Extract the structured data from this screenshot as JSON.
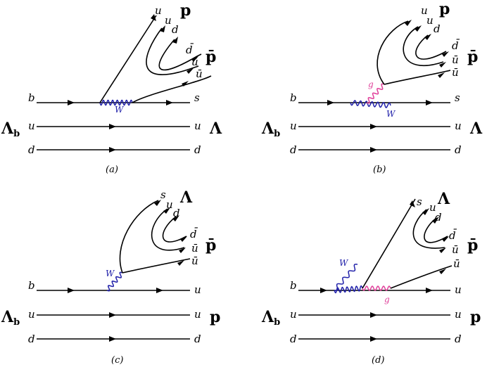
{
  "colors": {
    "w_boson": "#2222aa",
    "gluon": "#e0409a",
    "fermion": "#000000"
  },
  "diagrams": {
    "a": {
      "caption": "(a)",
      "initial_hadron": "Λ",
      "initial_hadron_sub": "b",
      "final_top": "p",
      "final_mid": "p̄",
      "final_bottom": "Λ",
      "quarks_left": [
        "b",
        "u",
        "d"
      ],
      "quarks_right": [
        "s",
        "u",
        "d"
      ],
      "quarks_top": [
        "u",
        "u",
        "d"
      ],
      "quarks_mid": [
        "d̄",
        "ū",
        "ū"
      ],
      "boson": "W"
    },
    "b": {
      "caption": "(b)",
      "initial_hadron": "Λ",
      "initial_hadron_sub": "b",
      "final_top": "p",
      "final_mid": "p̄",
      "final_bottom": "Λ",
      "quarks_left": [
        "b",
        "u",
        "d"
      ],
      "quarks_right": [
        "s",
        "u",
        "d"
      ],
      "quarks_top": [
        "u",
        "u",
        "d"
      ],
      "quarks_mid": [
        "d̄",
        "ū",
        "ū"
      ],
      "boson_w": "W",
      "boson_g": "g"
    },
    "c": {
      "caption": "(c)",
      "initial_hadron": "Λ",
      "initial_hadron_sub": "b",
      "final_top": "Λ",
      "final_mid": "p̄",
      "final_bottom": "p",
      "quarks_left": [
        "b",
        "u",
        "d"
      ],
      "quarks_right": [
        "u",
        "u",
        "d"
      ],
      "quarks_top": [
        "s",
        "u",
        "d"
      ],
      "quarks_mid": [
        "d̄",
        "ū",
        "ū"
      ],
      "boson": "W"
    },
    "d": {
      "caption": "(d)",
      "initial_hadron": "Λ",
      "initial_hadron_sub": "b",
      "final_top": "Λ",
      "final_mid": "p̄",
      "final_bottom": "p",
      "quarks_left": [
        "b",
        "u",
        "d"
      ],
      "quarks_right": [
        "u",
        "u",
        "d"
      ],
      "quarks_top": [
        "s",
        "u",
        "d"
      ],
      "quarks_mid": [
        "d̄",
        "ū",
        "ū"
      ],
      "boson_w": "W",
      "boson_g": "g"
    }
  }
}
